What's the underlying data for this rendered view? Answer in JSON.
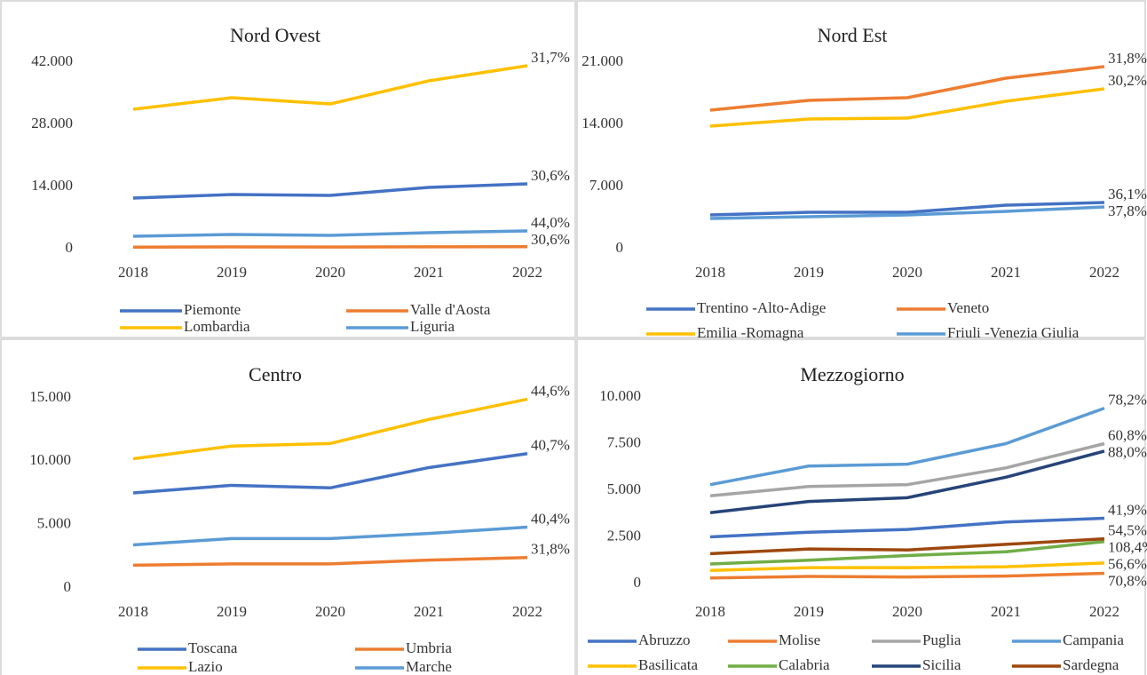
{
  "chart_data": [
    {
      "type": "line",
      "title": "Nord Ovest",
      "categories": [
        "2018",
        "2019",
        "2020",
        "2021",
        "2022"
      ],
      "ylim": [
        0,
        42000
      ],
      "yticks": [
        0,
        {
          "value": 14000,
          "label": "14.000"
        },
        {
          "value": 28000,
          "label": "28.000"
        },
        {
          "value": 42000,
          "label": "42.000"
        }
      ],
      "series": [
        {
          "name": "Piemonte",
          "color": "#4472c4",
          "values": [
            11400,
            12200,
            12000,
            13800,
            14600
          ],
          "end_label": "30,6%"
        },
        {
          "name": "Valle d'Aosta",
          "color": "#ed7d31",
          "values": [
            350,
            400,
            380,
            430,
            460
          ],
          "end_label": "30,6%"
        },
        {
          "name": "Lombardia",
          "color": "#ffc000",
          "values": [
            31400,
            34000,
            32600,
            37800,
            41200
          ],
          "end_label": "31,7%"
        },
        {
          "name": "Liguria",
          "color": "#5b9bd5",
          "values": [
            2800,
            3200,
            3000,
            3600,
            4000
          ],
          "end_label": "44,0%"
        }
      ]
    },
    {
      "type": "line",
      "title": "Nord Est",
      "categories": [
        "2018",
        "2019",
        "2020",
        "2021",
        "2022"
      ],
      "ylim": [
        0,
        21000
      ],
      "yticks": [
        0,
        {
          "value": 7000,
          "label": "7.000"
        },
        {
          "value": 14000,
          "label": "14.000"
        },
        {
          "value": 21000,
          "label": "21.000"
        }
      ],
      "series": [
        {
          "name": "Trentino -Alto-Adige",
          "color": "#4472c4",
          "values": [
            3800,
            4100,
            4100,
            4900,
            5200
          ],
          "end_label": "36,1%"
        },
        {
          "name": "Veneto",
          "color": "#ed7d31",
          "values": [
            15600,
            16700,
            17000,
            19200,
            20500
          ],
          "end_label": "31,8%"
        },
        {
          "name": "Emilia -Romagna",
          "color": "#ffc000",
          "values": [
            13800,
            14600,
            14700,
            16600,
            18000
          ],
          "end_label": "30,2%"
        },
        {
          "name": "Friuli -Venezia Giulia",
          "color": "#5b9bd5",
          "values": [
            3400,
            3600,
            3800,
            4200,
            4700
          ],
          "end_label": "37,8%"
        }
      ]
    },
    {
      "type": "line",
      "title": "Centro",
      "categories": [
        "2018",
        "2019",
        "2020",
        "2021",
        "2022"
      ],
      "ylim": [
        0,
        15000
      ],
      "yticks": [
        0,
        {
          "value": 5000,
          "label": "5.000"
        },
        {
          "value": 10000,
          "label": "10.000"
        },
        {
          "value": 15000,
          "label": "15.000"
        }
      ],
      "series": [
        {
          "name": "Toscana",
          "color": "#4472c4",
          "values": [
            7500,
            8100,
            7900,
            9500,
            10600
          ],
          "end_label": "40,7%"
        },
        {
          "name": "Umbria",
          "color": "#ed7d31",
          "values": [
            1800,
            1900,
            1900,
            2200,
            2400
          ],
          "end_label": "31,8%"
        },
        {
          "name": "Lazio",
          "color": "#ffc000",
          "values": [
            10200,
            11200,
            11400,
            13300,
            14900
          ],
          "end_label": "44,6%"
        },
        {
          "name": "Marche",
          "color": "#5b9bd5",
          "values": [
            3400,
            3900,
            3900,
            4300,
            4800
          ],
          "end_label": "40,4%"
        }
      ]
    },
    {
      "type": "line",
      "title": "Mezzogiorno",
      "categories": [
        "2018",
        "2019",
        "2020",
        "2021",
        "2022"
      ],
      "ylim": [
        0,
        10000
      ],
      "yticks": [
        0,
        {
          "value": 2500,
          "label": "2.500"
        },
        {
          "value": 5000,
          "label": "5.000"
        },
        {
          "value": 7500,
          "label": "7.500"
        },
        {
          "value": 10000,
          "label": "10.000"
        }
      ],
      "series": [
        {
          "name": "Abruzzo",
          "color": "#4472c4",
          "values": [
            2500,
            2750,
            2900,
            3300,
            3500
          ],
          "end_label": "41,9%"
        },
        {
          "name": "Molise",
          "color": "#ed7d31",
          "values": [
            300,
            380,
            350,
            400,
            550
          ],
          "end_label": "70,8%"
        },
        {
          "name": "Puglia",
          "color": "#a5a5a5",
          "values": [
            4700,
            5200,
            5300,
            6200,
            7500
          ],
          "end_label": "60,8%"
        },
        {
          "name": "Campania",
          "color": "#5b9bd5",
          "values": [
            5300,
            6300,
            6400,
            7500,
            9400
          ],
          "end_label": "78,2%"
        },
        {
          "name": "Basilicata",
          "color": "#ffc000",
          "values": [
            700,
            850,
            850,
            900,
            1100
          ],
          "end_label": "56,6%"
        },
        {
          "name": "Calabria",
          "color": "#70ad47",
          "values": [
            1050,
            1250,
            1500,
            1700,
            2250
          ],
          "end_label": "108,4%"
        },
        {
          "name": "Sicilia",
          "color": "#264478",
          "values": [
            3800,
            4400,
            4600,
            5700,
            7100
          ],
          "end_label": "88,0%"
        },
        {
          "name": "Sardegna",
          "color": "#9e480e",
          "values": [
            1600,
            1850,
            1800,
            2100,
            2400
          ],
          "end_label": "54,5%"
        }
      ]
    }
  ]
}
